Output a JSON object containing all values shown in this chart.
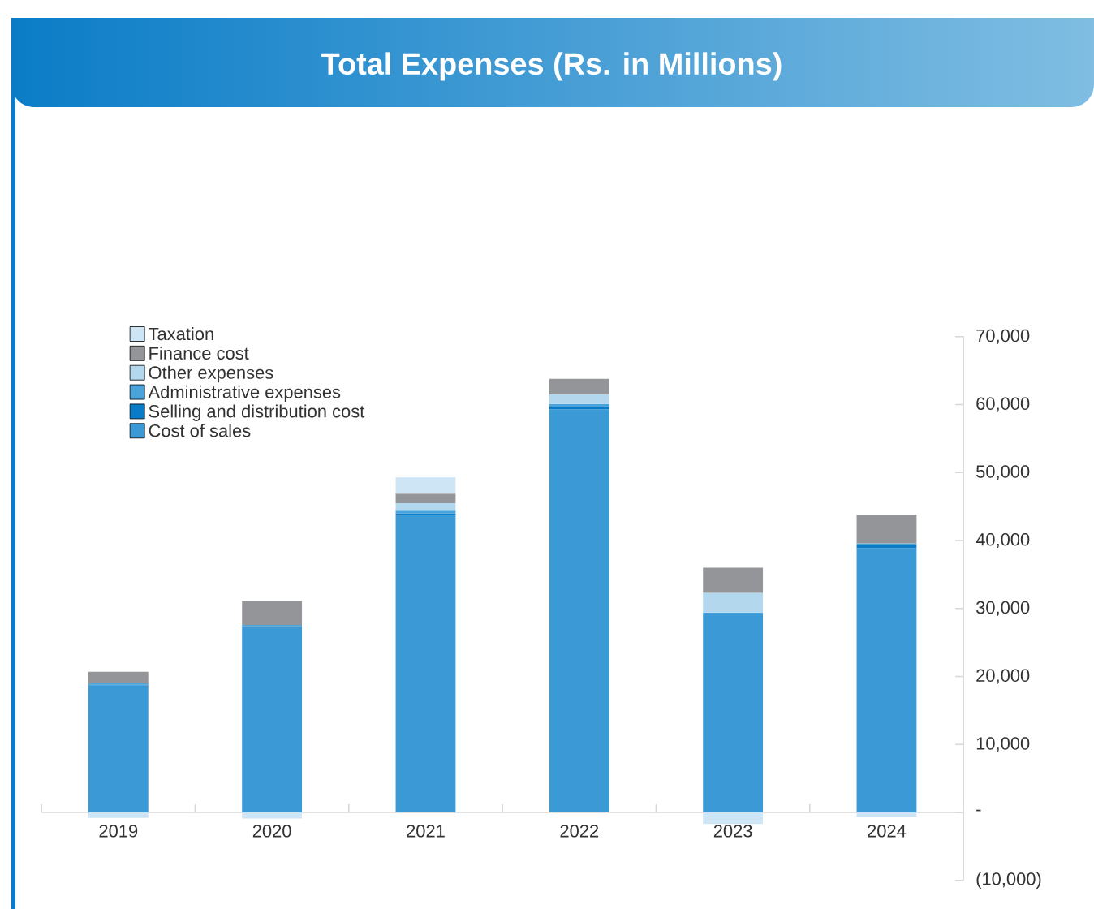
{
  "chart_data": {
    "type": "bar",
    "stacked": true,
    "title": "Total Expenses (Rs. in Millions)",
    "categories": [
      "2019",
      "2020",
      "2021",
      "2022",
      "2023",
      "2024"
    ],
    "series": [
      {
        "name": "Cost of sales",
        "color": "#3b9ad6",
        "values": [
          18700,
          27300,
          43800,
          59300,
          29200,
          38900
        ]
      },
      {
        "name": "Selling and distribution cost",
        "color": "#0a7cc7",
        "values": [
          100,
          100,
          200,
          300,
          0,
          400
        ]
      },
      {
        "name": "Administrative expenses",
        "color": "#4aa3da",
        "values": [
          200,
          200,
          500,
          500,
          200,
          300
        ]
      },
      {
        "name": "Other expenses",
        "color": "#b3d8ee",
        "values": [
          0,
          0,
          1000,
          1400,
          2900,
          0
        ]
      },
      {
        "name": "Finance cost",
        "color": "#939598",
        "values": [
          1700,
          3500,
          1400,
          2300,
          3700,
          4200
        ]
      },
      {
        "name": "Taxation",
        "color": "#cde5f4",
        "values": [
          -800,
          -900,
          2400,
          0,
          -1700,
          -700
        ]
      }
    ],
    "ylim": [
      -10000,
      70000
    ],
    "yticks": [
      {
        "value": -10000,
        "label": "(10,000)"
      },
      {
        "value": 0,
        "label": "-"
      },
      {
        "value": 10000,
        "label": "10,000"
      },
      {
        "value": 20000,
        "label": "20,000"
      },
      {
        "value": 30000,
        "label": "30,000"
      },
      {
        "value": 40000,
        "label": "40,000"
      },
      {
        "value": 50000,
        "label": "50,000"
      },
      {
        "value": 60000,
        "label": "60,000"
      },
      {
        "value": 70000,
        "label": "70,000"
      }
    ],
    "legend": "top left",
    "grid": false
  }
}
